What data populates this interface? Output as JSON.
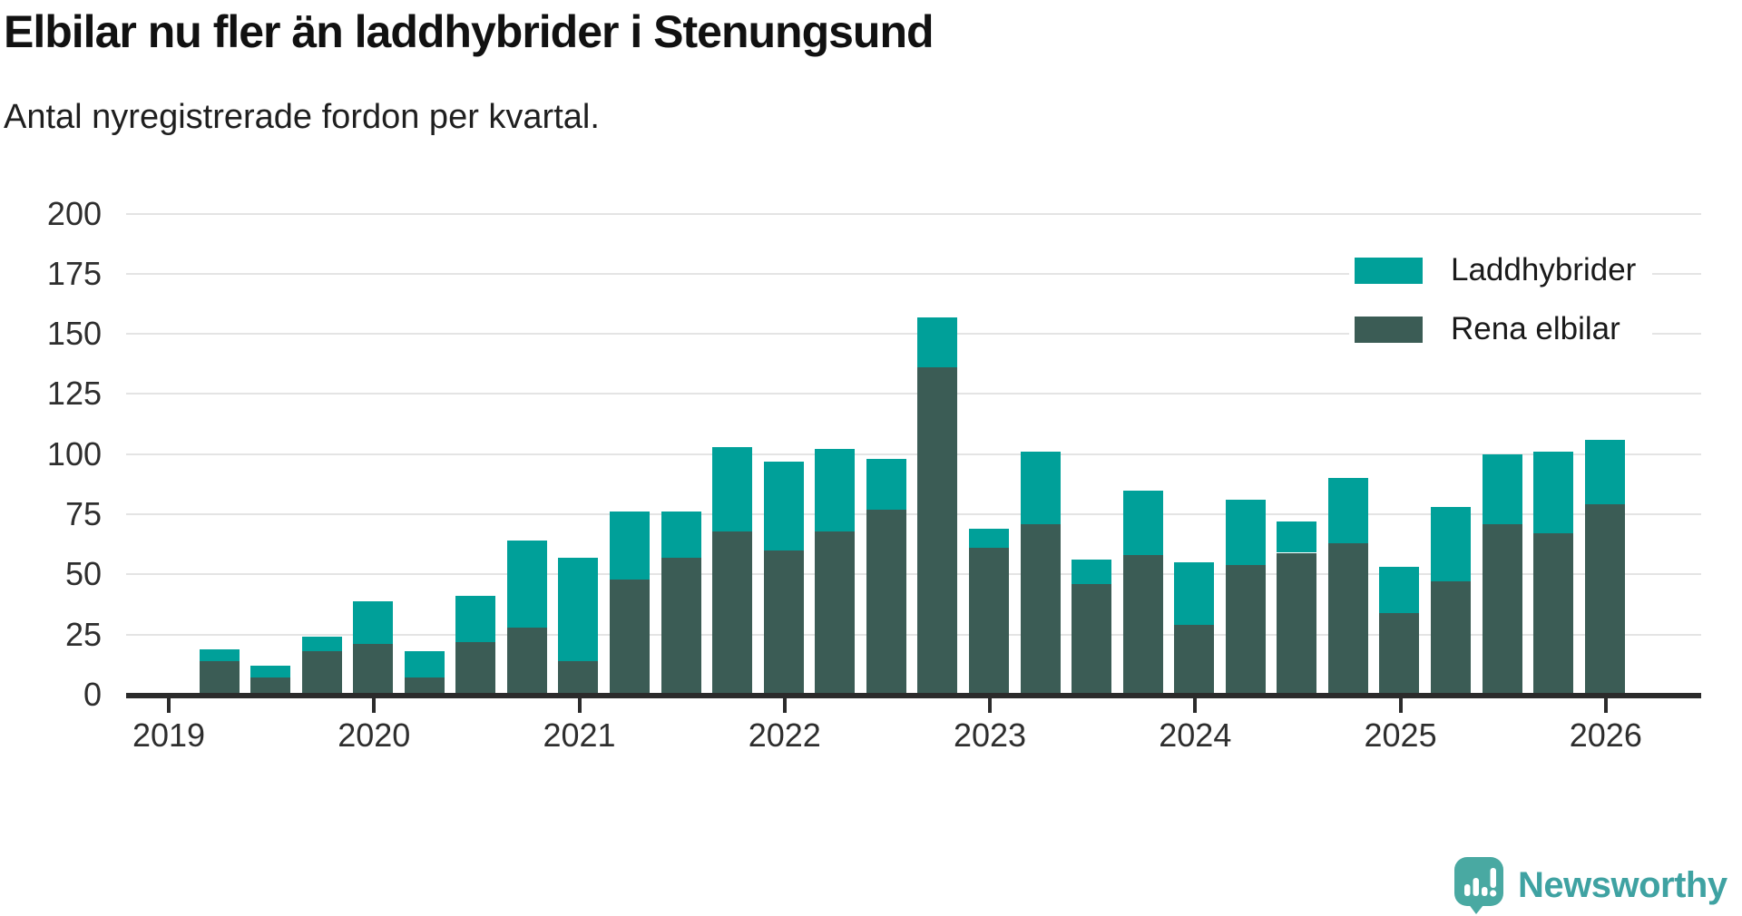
{
  "header": {
    "title": "Elbilar nu fler än laddhybrider i Stenungsund",
    "subtitle": "Antal nyregistrerade fordon per kvartal."
  },
  "branding": {
    "name": "Newsworthy",
    "color": "#49a9a2"
  },
  "chart_data": {
    "type": "bar",
    "stacked": true,
    "title": "Elbilar nu fler än laddhybrider i Stenungsund",
    "subtitle": "Antal nyregistrerade fordon per kvartal.",
    "categories": [
      "2019 Q2",
      "2019 Q3",
      "2019 Q4",
      "2020 Q1",
      "2020 Q2",
      "2020 Q3",
      "2020 Q4",
      "2021 Q1",
      "2021 Q2",
      "2021 Q3",
      "2021 Q4",
      "2022 Q1",
      "2022 Q2",
      "2022 Q3",
      "2022 Q4",
      "2023 Q1",
      "2023 Q2",
      "2023 Q3",
      "2023 Q4",
      "2024 Q1",
      "2024 Q2",
      "2024 Q3",
      "2024 Q4",
      "2025 Q1",
      "2025 Q2",
      "2025 Q3",
      "2025 Q4",
      "2026 Q1"
    ],
    "series": [
      {
        "name": "Laddhybrider",
        "color": "#00a099",
        "stack_position": "top",
        "values": [
          5,
          5,
          6,
          18,
          11,
          19,
          36,
          43,
          28,
          19,
          35,
          37,
          34,
          21,
          21,
          8,
          30,
          10,
          27,
          26,
          27,
          13,
          27,
          19,
          31,
          29,
          34,
          27
        ]
      },
      {
        "name": "Rena elbilar",
        "color": "#3b5c55",
        "stack_position": "bottom",
        "values": [
          14,
          7,
          18,
          21,
          7,
          22,
          28,
          14,
          48,
          57,
          68,
          60,
          68,
          77,
          136,
          61,
          71,
          46,
          58,
          29,
          54,
          59,
          63,
          34,
          47,
          71,
          67,
          79
        ]
      }
    ],
    "totals": [
      19,
      12,
      24,
      39,
      18,
      41,
      64,
      57,
      76,
      76,
      103,
      97,
      102,
      98,
      157,
      69,
      101,
      56,
      85,
      55,
      81,
      72,
      90,
      53,
      78,
      100,
      101,
      106
    ],
    "ylim": [
      0,
      200
    ],
    "y_ticks": [
      0,
      25,
      50,
      75,
      100,
      125,
      150,
      175,
      200
    ],
    "x_ticks": [
      "2019",
      "2020",
      "2021",
      "2022",
      "2023",
      "2024",
      "2025",
      "2026"
    ],
    "grid": true,
    "legend_position": "top-right"
  }
}
